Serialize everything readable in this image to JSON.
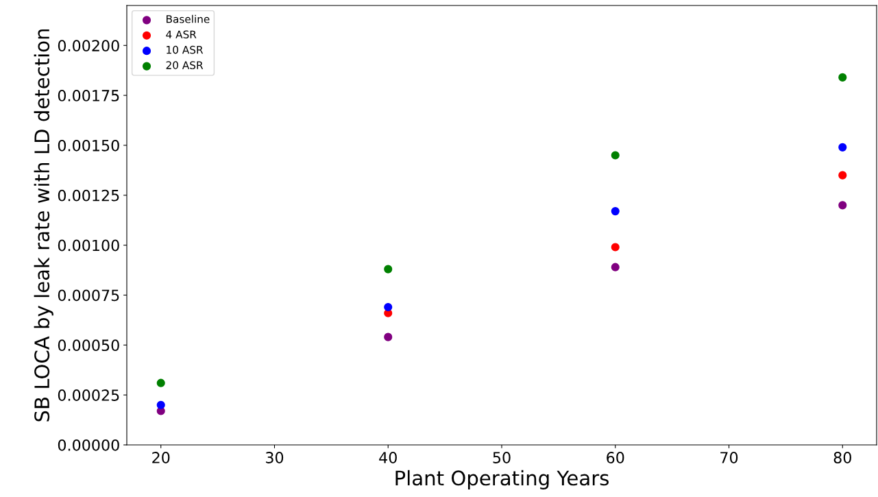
{
  "chart_data": {
    "type": "scatter",
    "xlabel": "Plant Operating Years",
    "ylabel": "SB LOCA by leak rate with LD detection",
    "x": [
      20,
      40,
      60,
      80
    ],
    "series": [
      {
        "name": "Baseline",
        "color": "#800080",
        "values": [
          0.00017,
          0.00054,
          0.00089,
          0.0012
        ]
      },
      {
        "name": "4 ASR",
        "color": "#ff0000",
        "values": [
          null,
          0.00066,
          0.00099,
          0.00135
        ]
      },
      {
        "name": "10 ASR",
        "color": "#0000ff",
        "values": [
          0.0002,
          0.00069,
          0.00117,
          0.00149
        ]
      },
      {
        "name": "20 ASR",
        "color": "#008000",
        "values": [
          0.00031,
          0.00088,
          0.00145,
          0.00184
        ]
      }
    ],
    "xlim": [
      17,
      83
    ],
    "xticks": [
      20,
      30,
      40,
      50,
      60,
      70,
      80
    ],
    "ylim": [
      0,
      0.0022
    ],
    "yticks": [
      {
        "value": 0,
        "label": "0.00000"
      },
      {
        "value": 0.00025,
        "label": "0.00025"
      },
      {
        "value": 0.0005,
        "label": "0.00050"
      },
      {
        "value": 0.00075,
        "label": "0.00075"
      },
      {
        "value": 0.001,
        "label": "0.00100"
      },
      {
        "value": 0.00125,
        "label": "0.00125"
      },
      {
        "value": 0.0015,
        "label": "0.00150"
      },
      {
        "value": 0.00175,
        "label": "0.00175"
      },
      {
        "value": 0.002,
        "label": "0.00200"
      }
    ],
    "legend": "top left",
    "grid": false,
    "marker": "circle"
  }
}
